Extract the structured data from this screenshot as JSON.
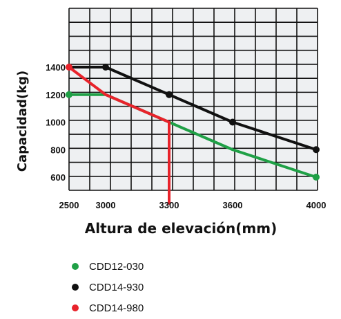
{
  "chart_data": {
    "type": "line",
    "xlabel": "Altura de elevación(mm)",
    "ylabel": "Capacidad(kg)",
    "x_ticks": [
      2500,
      3000,
      3300,
      3600,
      4000
    ],
    "y_ticks": [
      600,
      800,
      1000,
      1200,
      1400
    ],
    "grid": true,
    "legend_position": "bottom-left",
    "series": [
      {
        "name": "CDD12-030",
        "color": "#1fa046",
        "points": [
          [
            2500,
            1200
          ],
          [
            2800,
            1200
          ],
          [
            3000,
            1200
          ],
          [
            3600,
            800
          ],
          [
            4000,
            600
          ]
        ]
      },
      {
        "name": "CDD14-930",
        "color": "#111111",
        "points": [
          [
            2500,
            1400
          ],
          [
            3000,
            1400
          ],
          [
            3300,
            1200
          ],
          [
            3600,
            1000
          ],
          [
            4000,
            800
          ]
        ]
      },
      {
        "name": "CDD14-980",
        "color": "#e8232b",
        "points": [
          [
            2500,
            1400
          ],
          [
            3000,
            1200
          ],
          [
            3300,
            1000
          ],
          [
            3300,
            400
          ]
        ]
      }
    ]
  }
}
